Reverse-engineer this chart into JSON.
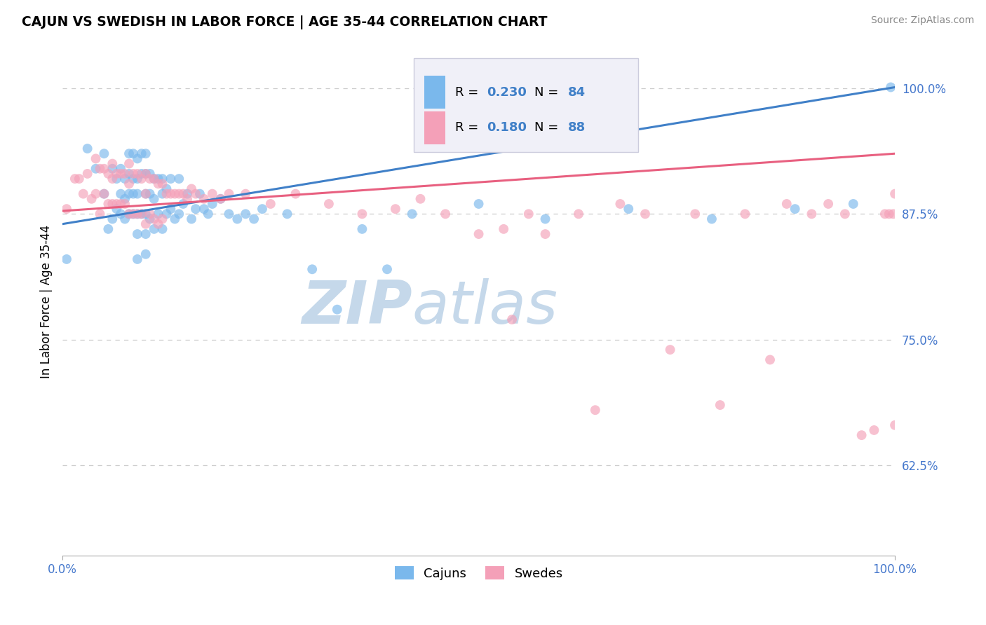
{
  "title": "CAJUN VS SWEDISH IN LABOR FORCE | AGE 35-44 CORRELATION CHART",
  "source_text": "Source: ZipAtlas.com",
  "ylabel": "In Labor Force | Age 35-44",
  "xlim": [
    0.0,
    1.0
  ],
  "ylim": [
    0.535,
    1.04
  ],
  "yticks": [
    0.625,
    0.75,
    0.875,
    1.0
  ],
  "ytick_labels": [
    "62.5%",
    "75.0%",
    "87.5%",
    "100.0%"
  ],
  "xtick_labels": [
    "0.0%",
    "100.0%"
  ],
  "cajun_R": 0.23,
  "cajun_N": 84,
  "swedish_R": 0.18,
  "swedish_N": 88,
  "cajun_color": "#7ab8ec",
  "swedish_color": "#f4a0b8",
  "cajun_line_color": "#4080c8",
  "swedish_line_color": "#e86080",
  "background_color": "#ffffff",
  "grid_color": "#cccccc",
  "watermark_color": "#c5d8ea",
  "tick_label_color": "#4477cc",
  "cajun_line_y0": 0.865,
  "cajun_line_y1": 1.001,
  "swedish_line_y0": 0.878,
  "swedish_line_y1": 0.935,
  "cajun_x": [
    0.005,
    0.03,
    0.04,
    0.05,
    0.05,
    0.055,
    0.06,
    0.06,
    0.065,
    0.065,
    0.07,
    0.07,
    0.07,
    0.075,
    0.075,
    0.075,
    0.08,
    0.08,
    0.08,
    0.08,
    0.085,
    0.085,
    0.085,
    0.085,
    0.09,
    0.09,
    0.09,
    0.09,
    0.09,
    0.09,
    0.095,
    0.095,
    0.095,
    0.1,
    0.1,
    0.1,
    0.1,
    0.1,
    0.1,
    0.105,
    0.105,
    0.105,
    0.11,
    0.11,
    0.11,
    0.115,
    0.115,
    0.12,
    0.12,
    0.12,
    0.125,
    0.125,
    0.13,
    0.13,
    0.135,
    0.14,
    0.14,
    0.145,
    0.15,
    0.155,
    0.16,
    0.165,
    0.17,
    0.175,
    0.18,
    0.19,
    0.2,
    0.21,
    0.22,
    0.23,
    0.24,
    0.27,
    0.3,
    0.33,
    0.36,
    0.39,
    0.42,
    0.5,
    0.58,
    0.68,
    0.78,
    0.88,
    0.95,
    0.995
  ],
  "cajun_y": [
    0.83,
    0.94,
    0.92,
    0.935,
    0.895,
    0.86,
    0.92,
    0.87,
    0.91,
    0.88,
    0.92,
    0.895,
    0.875,
    0.91,
    0.89,
    0.87,
    0.935,
    0.915,
    0.895,
    0.875,
    0.935,
    0.91,
    0.895,
    0.875,
    0.93,
    0.91,
    0.895,
    0.875,
    0.855,
    0.83,
    0.935,
    0.915,
    0.875,
    0.935,
    0.915,
    0.895,
    0.875,
    0.855,
    0.835,
    0.915,
    0.895,
    0.87,
    0.91,
    0.89,
    0.86,
    0.91,
    0.875,
    0.91,
    0.895,
    0.86,
    0.9,
    0.875,
    0.91,
    0.88,
    0.87,
    0.91,
    0.875,
    0.885,
    0.895,
    0.87,
    0.88,
    0.895,
    0.88,
    0.875,
    0.885,
    0.89,
    0.875,
    0.87,
    0.875,
    0.87,
    0.88,
    0.875,
    0.82,
    0.78,
    0.86,
    0.82,
    0.875,
    0.885,
    0.87,
    0.88,
    0.87,
    0.88,
    0.885,
    1.001
  ],
  "swedish_x": [
    0.005,
    0.015,
    0.02,
    0.025,
    0.03,
    0.035,
    0.04,
    0.04,
    0.045,
    0.045,
    0.05,
    0.05,
    0.055,
    0.055,
    0.06,
    0.06,
    0.06,
    0.065,
    0.065,
    0.07,
    0.07,
    0.075,
    0.075,
    0.08,
    0.08,
    0.08,
    0.085,
    0.085,
    0.09,
    0.09,
    0.095,
    0.095,
    0.1,
    0.1,
    0.1,
    0.105,
    0.105,
    0.11,
    0.11,
    0.115,
    0.115,
    0.12,
    0.12,
    0.125,
    0.13,
    0.135,
    0.14,
    0.145,
    0.15,
    0.155,
    0.16,
    0.17,
    0.18,
    0.19,
    0.2,
    0.22,
    0.25,
    0.28,
    0.32,
    0.36,
    0.4,
    0.43,
    0.46,
    0.5,
    0.53,
    0.54,
    0.56,
    0.58,
    0.62,
    0.64,
    0.67,
    0.7,
    0.73,
    0.76,
    0.79,
    0.82,
    0.85,
    0.87,
    0.9,
    0.92,
    0.94,
    0.96,
    0.975,
    0.988,
    0.993,
    0.998,
    1.0,
    1.0
  ],
  "swedish_y": [
    0.88,
    0.91,
    0.91,
    0.895,
    0.915,
    0.89,
    0.93,
    0.895,
    0.92,
    0.875,
    0.92,
    0.895,
    0.915,
    0.885,
    0.925,
    0.91,
    0.885,
    0.915,
    0.885,
    0.915,
    0.885,
    0.915,
    0.885,
    0.925,
    0.905,
    0.875,
    0.915,
    0.875,
    0.915,
    0.875,
    0.91,
    0.875,
    0.915,
    0.895,
    0.865,
    0.91,
    0.875,
    0.91,
    0.87,
    0.905,
    0.865,
    0.905,
    0.87,
    0.895,
    0.895,
    0.895,
    0.895,
    0.895,
    0.89,
    0.9,
    0.895,
    0.89,
    0.895,
    0.89,
    0.895,
    0.895,
    0.885,
    0.895,
    0.885,
    0.875,
    0.88,
    0.89,
    0.875,
    0.855,
    0.86,
    0.77,
    0.875,
    0.855,
    0.875,
    0.68,
    0.885,
    0.875,
    0.74,
    0.875,
    0.685,
    0.875,
    0.73,
    0.885,
    0.875,
    0.885,
    0.875,
    0.655,
    0.66,
    0.875,
    0.875,
    0.875,
    0.665,
    0.895
  ]
}
